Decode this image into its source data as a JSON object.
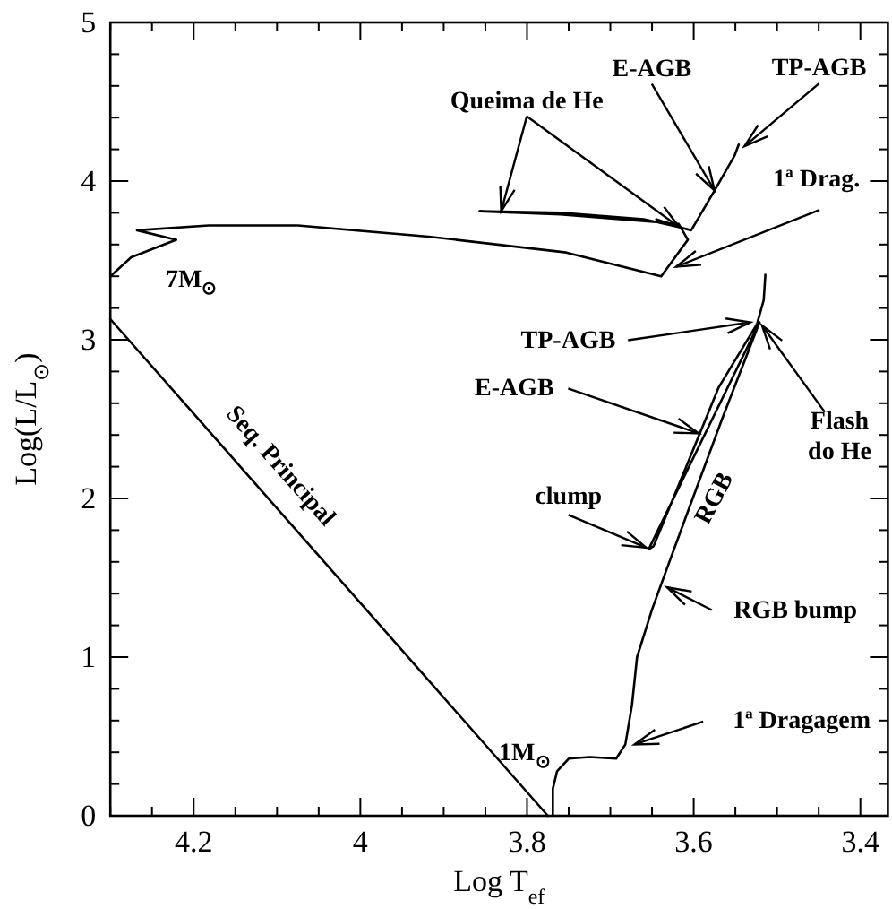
{
  "chart_data": {
    "type": "line",
    "xlabel": "Log T$_{ef}$",
    "ylabel": "Log(L/L$_{⊙}$)",
    "xlim": [
      4.3,
      3.367
    ],
    "ylim": [
      0,
      5
    ],
    "xticks": [
      {
        "value": 4.3,
        "label": null
      },
      {
        "value": 4.25,
        "label": null
      },
      4.2,
      {
        "value": 4.15,
        "label": null
      },
      {
        "value": 4.1,
        "label": null
      },
      {
        "value": 4.05,
        "label": null
      },
      4,
      {
        "value": 3.95,
        "label": null
      },
      {
        "value": 3.9,
        "label": null
      },
      {
        "value": 3.85,
        "label": null
      },
      3.8,
      {
        "value": 3.75,
        "label": null
      },
      {
        "value": 3.7,
        "label": null
      },
      {
        "value": 3.65,
        "label": null
      },
      3.6,
      {
        "value": 3.55,
        "label": null
      },
      {
        "value": 3.5,
        "label": null
      },
      {
        "value": 3.45,
        "label": null
      },
      3.4
    ],
    "yticks": [
      0,
      {
        "value": 0.2,
        "label": null
      },
      {
        "value": 0.4,
        "label": null
      },
      {
        "value": 0.6,
        "label": null
      },
      {
        "value": 0.8,
        "label": null
      },
      1,
      {
        "value": 1.2,
        "label": null
      },
      {
        "value": 1.4,
        "label": null
      },
      {
        "value": 1.6,
        "label": null
      },
      {
        "value": 1.8,
        "label": null
      },
      2,
      {
        "value": 2.2,
        "label": null
      },
      {
        "value": 2.4,
        "label": null
      },
      {
        "value": 2.6,
        "label": null
      },
      {
        "value": 2.8,
        "label": null
      },
      3,
      {
        "value": 3.2,
        "label": null
      },
      {
        "value": 3.4,
        "label": null
      },
      {
        "value": 3.6,
        "label": null
      },
      {
        "value": 3.8,
        "label": null
      },
      4,
      {
        "value": 4.2,
        "label": null
      },
      {
        "value": 4.4,
        "label": null
      },
      {
        "value": 4.6,
        "label": null
      },
      {
        "value": 4.8,
        "label": null
      },
      5
    ],
    "line_style": "solid",
    "series": [
      {
        "name": "Seq. Principal",
        "color": "#000000",
        "x": [
          4.3,
          3.775
        ],
        "values": [
          3.13,
          0
        ]
      },
      {
        "name": "7M$_{⊙}$",
        "color": "#000000",
        "x": [
          4.3,
          4.275,
          4.221,
          4.268,
          4.182,
          4.075,
          3.918,
          3.753,
          3.639,
          3.607,
          3.618,
          3.76,
          3.857,
          3.76,
          3.66,
          3.618,
          3.603,
          3.575,
          3.551,
          3.546
        ],
        "values": [
          3.4,
          3.52,
          3.63,
          3.69,
          3.72,
          3.72,
          3.65,
          3.55,
          3.4,
          3.63,
          3.73,
          3.79,
          3.81,
          3.8,
          3.76,
          3.71,
          3.69,
          3.94,
          4.16,
          4.23
        ]
      },
      {
        "name": "1M$_{⊙}$",
        "color": "#000000",
        "x": [
          3.769,
          3.769,
          3.764,
          3.75,
          3.725,
          3.693,
          3.682,
          3.674,
          3.668,
          3.65,
          3.632,
          3.611,
          3.566,
          3.521,
          3.654,
          3.648,
          3.57,
          3.524,
          3.516,
          3.514
        ],
        "values": [
          0,
          0.17,
          0.28,
          0.36,
          0.37,
          0.36,
          0.45,
          0.7,
          1.0,
          1.3,
          1.56,
          1.86,
          2.5,
          3.11,
          1.68,
          1.7,
          2.7,
          3.1,
          3.25,
          3.41
        ]
      }
    ],
    "annotations": [
      {
        "text": "Queima de He",
        "x": 3.831,
        "y": 3.81
      },
      {
        "text": "E-AGB",
        "x": 3.575,
        "y": 3.94
      },
      {
        "text": "TP-AGB",
        "x": 3.539,
        "y": 4.22
      },
      {
        "text": "1ª Drag.",
        "x": 3.621,
        "y": 3.46
      },
      {
        "text": "TP-AGB",
        "x": 3.532,
        "y": 3.11
      },
      {
        "text": "E-AGB",
        "x": 3.594,
        "y": 2.41
      },
      {
        "text": "Flash\ndo He",
        "x": 3.518,
        "y": 3.09
      },
      {
        "text": "clump",
        "x": 3.657,
        "y": 1.69
      },
      {
        "text": "RGB bump",
        "x": 3.632,
        "y": 1.44
      },
      {
        "text": "1ª Dragagem",
        "x": 3.671,
        "y": 0.45
      },
      {
        "text": "RGB",
        "x": 3.601,
        "y": 2.0
      }
    ]
  }
}
